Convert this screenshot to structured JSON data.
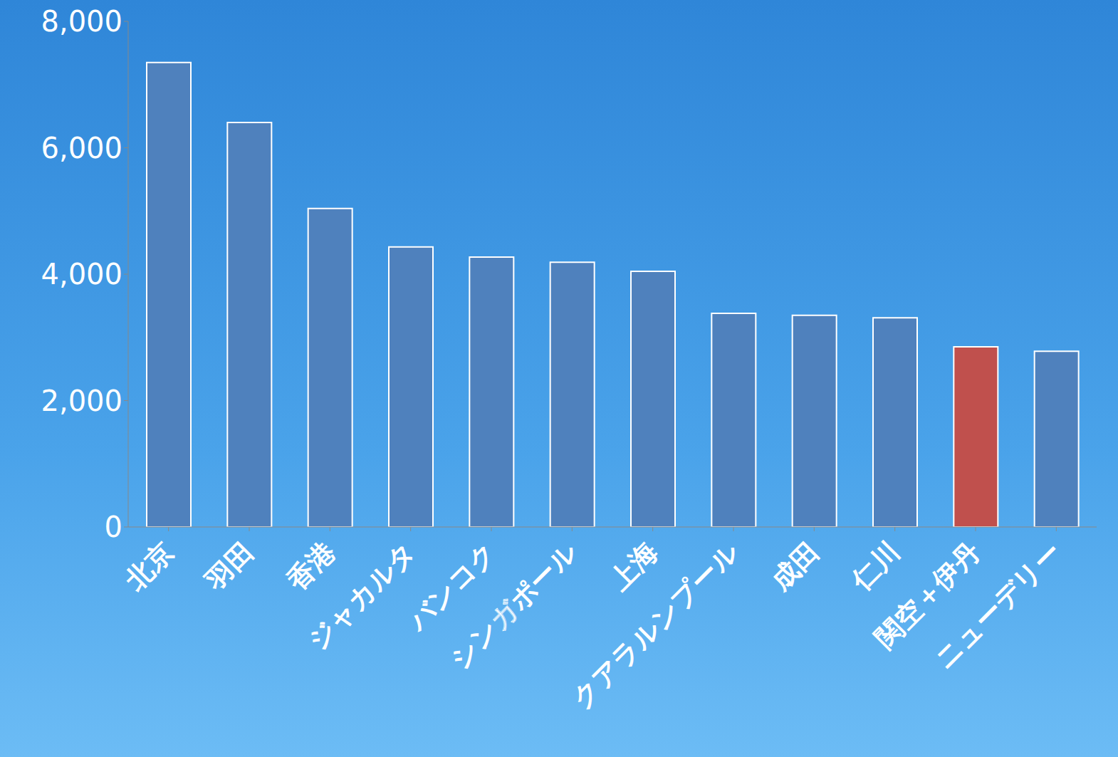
{
  "chart_data": {
    "type": "bar",
    "categories": [
      "北京",
      "羽田",
      "香港",
      "ジャカルタ",
      "バンコク",
      "シンガポール",
      "上海",
      "クアラルンプール",
      "成田",
      "仁川",
      "関空＋伊丹",
      "ニューデリー"
    ],
    "values": [
      7350,
      6400,
      5040,
      4430,
      4270,
      4190,
      4045,
      3380,
      3350,
      3310,
      2850,
      2780
    ],
    "colors": [
      "#4f81bd",
      "#4f81bd",
      "#4f81bd",
      "#4f81bd",
      "#4f81bd",
      "#4f81bd",
      "#4f81bd",
      "#4f81bd",
      "#4f81bd",
      "#4f81bd",
      "#c0504d",
      "#4f81bd"
    ],
    "ylim": [
      0,
      8000
    ],
    "yticks": [
      0,
      {
        "value": 2000,
        "label": "2,000"
      },
      {
        "value": 4000,
        "label": "4,000"
      },
      {
        "value": 6000,
        "label": "6,000"
      },
      {
        "value": 8000,
        "label": "8,000"
      }
    ],
    "grid": false
  }
}
